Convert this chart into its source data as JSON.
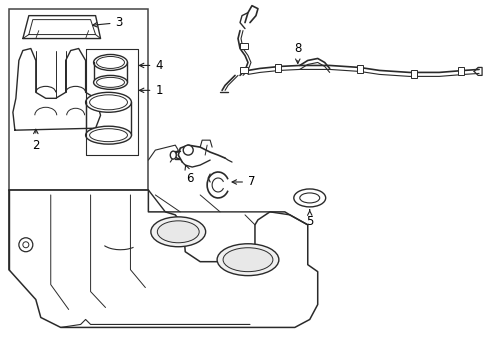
{
  "background_color": "#ffffff",
  "line_color": "#2a2a2a",
  "label_color": "#000000",
  "figsize": [
    4.89,
    3.6
  ],
  "dpi": 100,
  "label_fontsize": 8.5,
  "part_linewidth": 0.9
}
